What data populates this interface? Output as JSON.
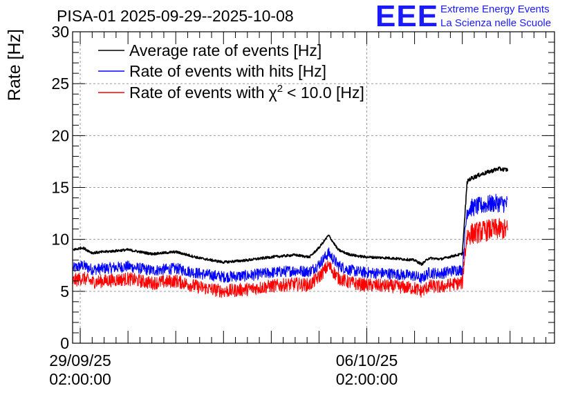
{
  "logo": {
    "mark": "EEE",
    "line1": "Extreme Energy Events",
    "line2": "La Scienza nelle Scuole",
    "color": "#1a1aff"
  },
  "chart_data": {
    "type": "line",
    "title": "PISA-01 2025-09-29--2025-10-08",
    "xlabel": "",
    "ylabel": "Rate [Hz]",
    "xlim": [
      -0.16,
      9.93
    ],
    "ylim": [
      0,
      30
    ],
    "yticks": [
      0,
      5,
      10,
      15,
      20,
      25,
      30
    ],
    "xticks": [
      {
        "x": 0,
        "line1": "29/09/25",
        "line2": "02:00:00"
      },
      {
        "x": 6,
        "line1": "06/10/25",
        "line2": "02:00:00"
      }
    ],
    "grid": true,
    "legend_position": "top-left",
    "x_unit": "days since 29/09/25 02:00:00",
    "x": [
      -0.15,
      0.05,
      0.25,
      0.5,
      1.0,
      1.5,
      2.0,
      2.5,
      3.0,
      3.5,
      4.0,
      4.5,
      4.8,
      5.0,
      5.2,
      5.4,
      5.6,
      5.8,
      6.0,
      6.5,
      7.0,
      7.15,
      7.3,
      7.55,
      7.8,
      8.0,
      8.05,
      8.1,
      8.15,
      8.35,
      8.55,
      8.75,
      8.95
    ],
    "series": [
      {
        "name": "Average rate of events [Hz]",
        "label_text": "Average rate of events [Hz]",
        "color": "#000000",
        "values": [
          9.0,
          9.2,
          8.7,
          8.8,
          9.0,
          8.6,
          8.8,
          8.2,
          7.8,
          8.0,
          8.3,
          8.5,
          8.3,
          9.2,
          10.4,
          9.0,
          8.6,
          8.4,
          8.3,
          8.2,
          8.0,
          7.6,
          8.2,
          8.1,
          8.4,
          8.6,
          12.0,
          15.5,
          15.8,
          16.2,
          16.5,
          16.8,
          16.7
        ]
      },
      {
        "name": "Rate of events with hits [Hz]",
        "label_text": "Rate of events with hits [Hz]",
        "color": "#0000ff",
        "values": [
          7.2,
          7.5,
          7.1,
          7.2,
          7.4,
          7.0,
          7.2,
          6.7,
          6.4,
          6.5,
          6.8,
          7.0,
          6.9,
          7.6,
          8.7,
          7.5,
          7.1,
          6.9,
          6.8,
          6.7,
          6.5,
          6.2,
          6.8,
          6.7,
          7.0,
          7.1,
          10.0,
          12.8,
          13.0,
          13.2,
          13.4,
          13.5,
          13.4
        ]
      },
      {
        "name": "Rate of events with chi2 < 10.0 [Hz]",
        "label_text": "Rate of events with",
        "label_symbol": "χ",
        "label_sup": "2",
        "label_rest": "< 10.0 [Hz]",
        "color": "#ff0000",
        "values": [
          6.0,
          6.3,
          5.9,
          6.0,
          6.2,
          5.8,
          6.0,
          5.4,
          5.0,
          5.2,
          5.5,
          5.7,
          5.6,
          6.4,
          7.5,
          6.3,
          5.9,
          5.7,
          5.6,
          5.5,
          5.3,
          5.0,
          5.5,
          5.4,
          5.7,
          5.8,
          8.5,
          10.3,
          10.5,
          10.7,
          10.9,
          11.0,
          10.9
        ]
      }
    ]
  }
}
